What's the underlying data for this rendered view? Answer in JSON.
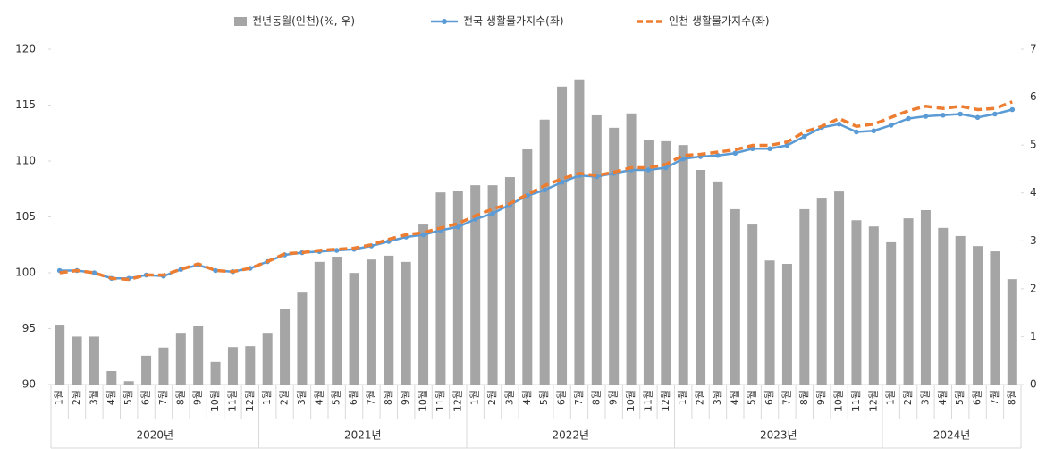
{
  "chart_data": {
    "type": "combo",
    "category_groups": [
      {
        "name": "2020년",
        "categories": [
          "1월",
          "2월",
          "3월",
          "4월",
          "5월",
          "6월",
          "7월",
          "8월",
          "9월",
          "10월",
          "11월",
          "12월"
        ]
      },
      {
        "name": "2021년",
        "categories": [
          "1월",
          "2월",
          "3월",
          "4월",
          "5월",
          "6월",
          "7월",
          "8월",
          "9월",
          "10월",
          "11월",
          "12월"
        ]
      },
      {
        "name": "2022년",
        "categories": [
          "1월",
          "2월",
          "3월",
          "4월",
          "5월",
          "6월",
          "7월",
          "8월",
          "9월",
          "10월",
          "11월",
          "12월"
        ]
      },
      {
        "name": "2023년",
        "categories": [
          "1월",
          "2월",
          "3월",
          "4월",
          "5월",
          "6월",
          "7월",
          "8월",
          "9월",
          "10월",
          "11월",
          "12월"
        ]
      },
      {
        "name": "2024년",
        "categories": [
          "1월",
          "2월",
          "3월",
          "4월",
          "5월",
          "6월",
          "7월",
          "8월"
        ]
      }
    ],
    "series": [
      {
        "name": "전년동월(인천)(%, 우)",
        "kind": "bar",
        "axis": "y2",
        "color": "#a5a5a5",
        "values": [
          1.25,
          1.0,
          1.0,
          0.28,
          0.07,
          0.6,
          0.77,
          1.08,
          1.23,
          0.47,
          0.78,
          0.8,
          1.08,
          1.57,
          1.92,
          2.56,
          2.67,
          2.33,
          2.61,
          2.69,
          2.56,
          3.34,
          4.01,
          4.05,
          4.16,
          4.16,
          4.33,
          4.91,
          5.53,
          6.22,
          6.37,
          5.62,
          5.36,
          5.66,
          5.1,
          5.08,
          5.0,
          4.48,
          4.24,
          3.66,
          3.34,
          2.59,
          2.52,
          3.66,
          3.9,
          4.03,
          3.43,
          3.3,
          2.97,
          3.47,
          3.64,
          3.27,
          3.1,
          2.89,
          2.78,
          2.2
        ]
      },
      {
        "name": "전국 생활물가지수(좌)",
        "kind": "line",
        "color": "#5b9bd5",
        "values": [
          100.2,
          100.2,
          100.0,
          99.5,
          99.5,
          99.8,
          99.7,
          100.3,
          100.7,
          100.2,
          100.1,
          100.4,
          101.0,
          101.6,
          101.8,
          101.9,
          102.0,
          102.1,
          102.4,
          102.8,
          103.2,
          103.4,
          103.8,
          104.1,
          104.8,
          105.3,
          106.1,
          106.9,
          107.4,
          108.1,
          108.7,
          108.6,
          108.9,
          109.2,
          109.2,
          109.4,
          110.2,
          110.4,
          110.5,
          110.7,
          111.1,
          111.1,
          111.4,
          112.2,
          113.0,
          113.3,
          112.6,
          112.7,
          113.2,
          113.8,
          114.0,
          114.1,
          114.2,
          113.9,
          114.2,
          114.6
        ]
      },
      {
        "name": "인천 생활물가지수(좌)",
        "kind": "dashed-line",
        "color": "#ed7d31",
        "values": [
          100.0,
          100.2,
          100.0,
          99.5,
          99.4,
          99.8,
          99.8,
          100.3,
          100.8,
          100.2,
          100.1,
          100.4,
          101.0,
          101.7,
          101.8,
          102.0,
          102.1,
          102.2,
          102.5,
          103.0,
          103.4,
          103.6,
          104.0,
          104.4,
          105.1,
          105.7,
          106.2,
          107.0,
          107.8,
          108.4,
          108.9,
          108.7,
          109.0,
          109.4,
          109.4,
          109.7,
          110.5,
          110.6,
          110.8,
          111.0,
          111.4,
          111.4,
          111.7,
          112.6,
          113.1,
          113.8,
          113.1,
          113.3,
          113.9,
          114.5,
          114.9,
          114.7,
          114.9,
          114.6,
          114.7,
          115.3
        ]
      }
    ],
    "ylim": [
      90,
      120
    ],
    "yticks": [
      90,
      95,
      100,
      105,
      110,
      115,
      120
    ],
    "y2lim": [
      0,
      7
    ],
    "y2ticks": [
      0,
      1,
      2,
      3,
      4,
      5,
      6,
      7
    ],
    "legend": "top"
  }
}
